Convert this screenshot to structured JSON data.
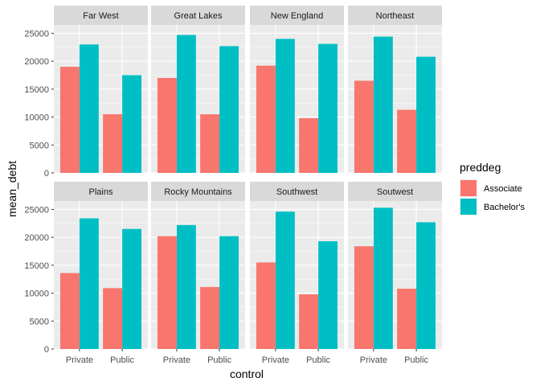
{
  "chart_data": {
    "type": "bar",
    "title": "",
    "xlabel": "control",
    "ylabel": "mean_debt",
    "categories": [
      "Private",
      "Public"
    ],
    "yticks": [
      0,
      5000,
      10000,
      15000,
      20000,
      25000
    ],
    "ylim": [
      0,
      26500
    ],
    "grid": true,
    "legend": {
      "title": "preddeg",
      "position": "right",
      "entries": [
        {
          "name": "Associate",
          "color": "#F8766D"
        },
        {
          "name": "Bachelor's",
          "color": "#00BFC4"
        }
      ]
    },
    "facets": [
      {
        "label": "Far West",
        "series": [
          {
            "name": "Associate",
            "values": [
              19000,
              10500
            ]
          },
          {
            "name": "Bachelor's",
            "values": [
              23000,
              17500
            ]
          }
        ]
      },
      {
        "label": "Great Lakes",
        "series": [
          {
            "name": "Associate",
            "values": [
              17000,
              10500
            ]
          },
          {
            "name": "Bachelor's",
            "values": [
              24700,
              22700
            ]
          }
        ]
      },
      {
        "label": "New England",
        "series": [
          {
            "name": "Associate",
            "values": [
              19200,
              9800
            ]
          },
          {
            "name": "Bachelor's",
            "values": [
              24000,
              23100
            ]
          }
        ]
      },
      {
        "label": "Northeast",
        "series": [
          {
            "name": "Associate",
            "values": [
              16500,
              11300
            ]
          },
          {
            "name": "Bachelor's",
            "values": [
              24400,
              20800
            ]
          }
        ]
      },
      {
        "label": "Plains",
        "series": [
          {
            "name": "Associate",
            "values": [
              13600,
              10900
            ]
          },
          {
            "name": "Bachelor's",
            "values": [
              23400,
              21500
            ]
          }
        ]
      },
      {
        "label": "Rocky Mountains",
        "series": [
          {
            "name": "Associate",
            "values": [
              20200,
              11100
            ]
          },
          {
            "name": "Bachelor's",
            "values": [
              22200,
              20200
            ]
          }
        ]
      },
      {
        "label": "Southwest",
        "series": [
          {
            "name": "Associate",
            "values": [
              15500,
              9800
            ]
          },
          {
            "name": "Bachelor's",
            "values": [
              24600,
              19300
            ]
          }
        ]
      },
      {
        "label": "Soutwest",
        "series": [
          {
            "name": "Associate",
            "values": [
              18400,
              10800
            ]
          },
          {
            "name": "Bachelor's",
            "values": [
              25300,
              22700
            ]
          }
        ]
      }
    ]
  }
}
